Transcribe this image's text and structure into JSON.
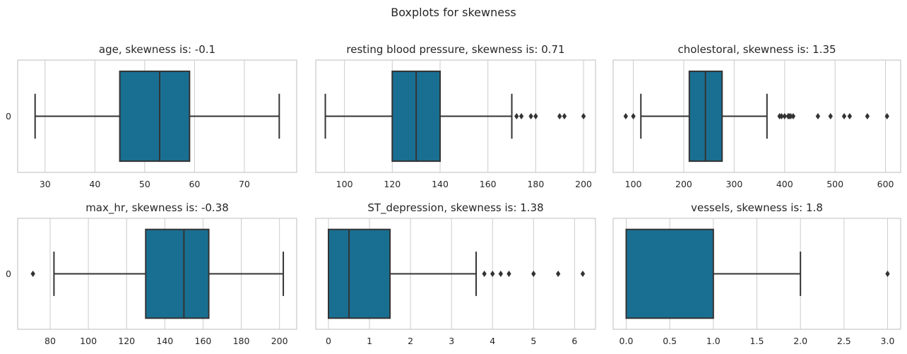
{
  "figure": {
    "title": "Boxplots for skewness",
    "box_color": "#196f92",
    "line_color": "#333333",
    "grid_color": "#cccccc"
  },
  "chart_data": [
    {
      "type": "box",
      "title": "age, skewness is: -0.1",
      "orientation": "horizontal",
      "category_label": "0",
      "xlim": [
        24.5,
        80.5
      ],
      "xticks": [
        30,
        40,
        50,
        60,
        70
      ],
      "tick_labels": [
        "30",
        "40",
        "50",
        "60",
        "70"
      ],
      "whisker_low": 28,
      "q1": 45,
      "median": 53,
      "q3": 59,
      "whisker_high": 77,
      "outliers": []
    },
    {
      "type": "box",
      "title": "resting blood pressure, skewness is: 0.71",
      "orientation": "horizontal",
      "category_label": "",
      "xlim": [
        88,
        205
      ],
      "xticks": [
        100,
        120,
        140,
        160,
        180,
        200
      ],
      "tick_labels": [
        "100",
        "120",
        "140",
        "160",
        "180",
        "200"
      ],
      "whisker_low": 92,
      "q1": 120,
      "median": 130,
      "q3": 140,
      "whisker_high": 170,
      "outliers": [
        172,
        174,
        178,
        180,
        190,
        192,
        200
      ]
    },
    {
      "type": "box",
      "title": "cholestoral, skewness is: 1.35",
      "orientation": "horizontal",
      "category_label": "",
      "xlim": [
        60,
        630
      ],
      "xticks": [
        100,
        200,
        300,
        400,
        500,
        600
      ],
      "tick_labels": [
        "100",
        "200",
        "300",
        "400",
        "500",
        "600"
      ],
      "whisker_low": 115,
      "q1": 211,
      "median": 243,
      "q3": 276,
      "whisker_high": 365,
      "outliers": [
        85,
        100,
        390,
        394,
        400,
        407,
        409,
        412,
        417,
        466,
        491,
        518,
        529,
        564,
        603
      ]
    },
    {
      "type": "box",
      "title": "max_hr, skewness is: -0.38",
      "orientation": "horizontal",
      "category_label": "0",
      "xlim": [
        63,
        209
      ],
      "xticks": [
        80,
        100,
        120,
        140,
        160,
        180,
        200
      ],
      "tick_labels": [
        "80",
        "100",
        "120",
        "140",
        "160",
        "180",
        "200"
      ],
      "whisker_low": 82,
      "q1": 130,
      "median": 150,
      "q3": 163,
      "whisker_high": 202,
      "outliers": [
        71
      ]
    },
    {
      "type": "box",
      "title": "ST_depression, skewness is: 1.38",
      "orientation": "horizontal",
      "category_label": "",
      "xlim": [
        -0.31,
        6.51
      ],
      "xticks": [
        0,
        1,
        2,
        3,
        4,
        5,
        6
      ],
      "tick_labels": [
        "0",
        "1",
        "2",
        "3",
        "4",
        "5",
        "6"
      ],
      "whisker_low": 0,
      "q1": 0,
      "median": 0.5,
      "q3": 1.5,
      "whisker_high": 3.6,
      "outliers": [
        3.8,
        4.0,
        4.2,
        4.4,
        5.0,
        5.6,
        6.2
      ]
    },
    {
      "type": "box",
      "title": "vessels, skewness is: 1.8",
      "orientation": "horizontal",
      "category_label": "",
      "xlim": [
        -0.15,
        3.15
      ],
      "xticks": [
        0,
        0.5,
        1,
        1.5,
        2,
        2.5,
        3
      ],
      "tick_labels": [
        "0.0",
        "0.5",
        "1.0",
        "1.5",
        "2.0",
        "2.5",
        "3.0"
      ],
      "whisker_low": 0,
      "q1": 0,
      "median": 0,
      "q3": 1,
      "whisker_high": 2,
      "outliers": [
        3
      ]
    }
  ]
}
